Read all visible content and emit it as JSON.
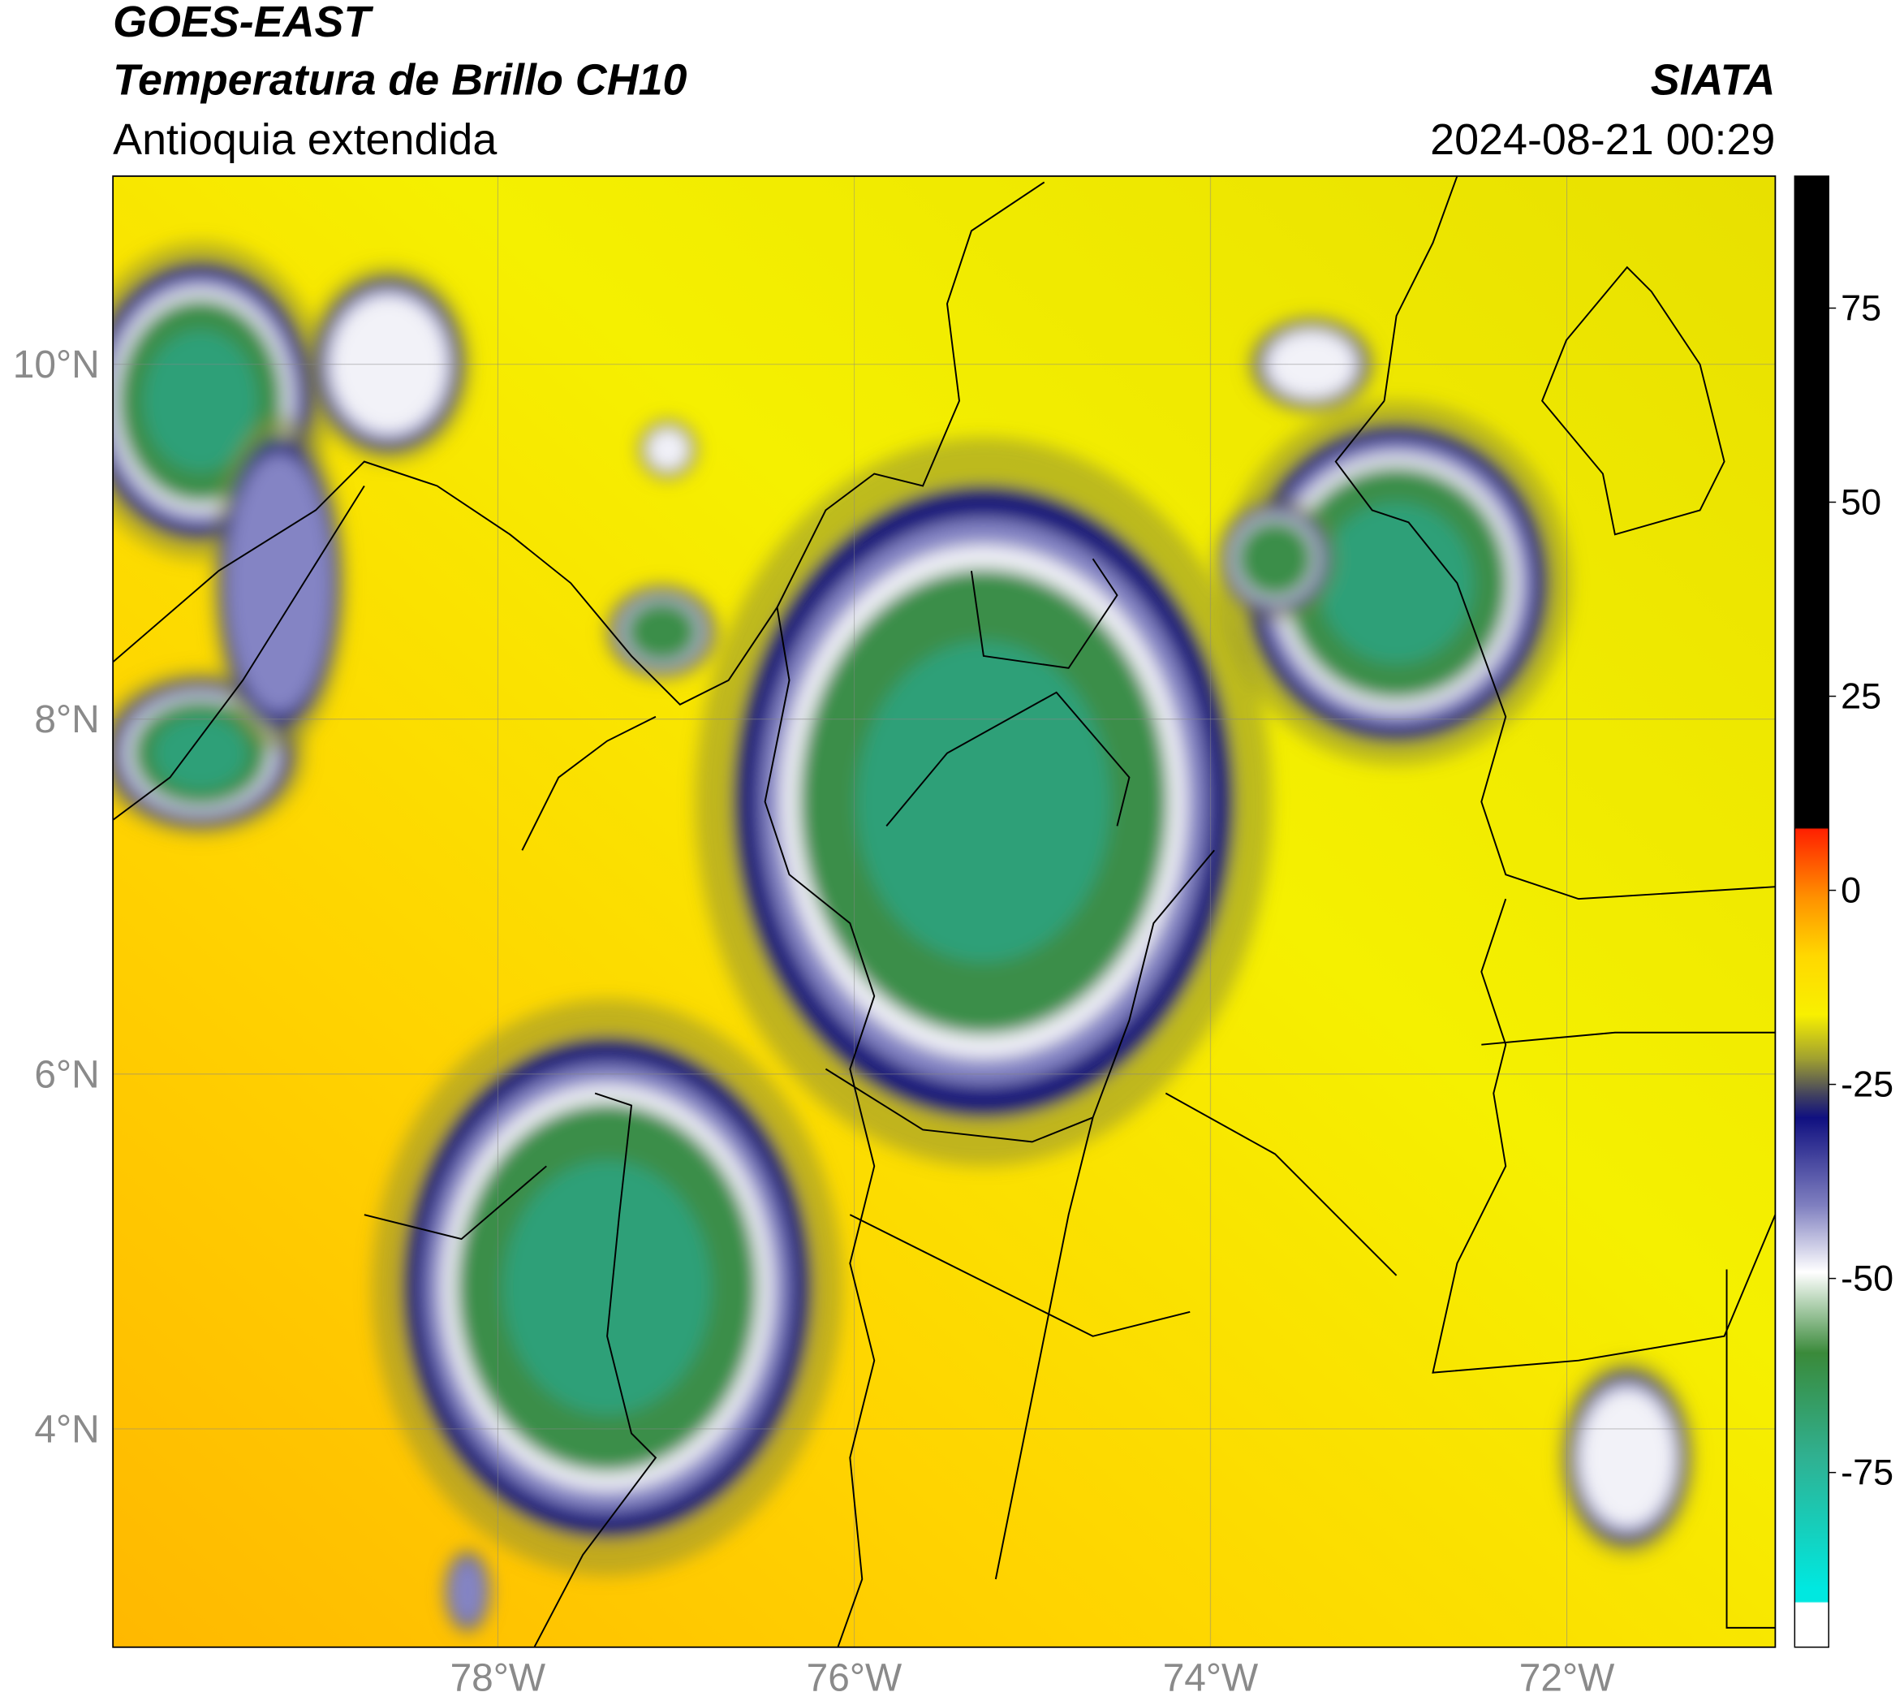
{
  "header": {
    "title": "GOES-EAST",
    "subtitle": "Temperatura de Brillo CH10",
    "region": "Antioquia extendida",
    "source": "SIATA",
    "datetime": "2024-08-21 00:29"
  },
  "map": {
    "xlim": [
      -80.16,
      -70.83
    ],
    "ylim": [
      2.77,
      11.06
    ],
    "xticks": [
      {
        "value": -78,
        "label": "78°W"
      },
      {
        "value": -76,
        "label": "76°W"
      },
      {
        "value": -74,
        "label": "74°W"
      },
      {
        "value": -72,
        "label": "72°W"
      }
    ],
    "yticks": [
      {
        "value": 10,
        "label": "10°N"
      },
      {
        "value": 8,
        "label": "8°N"
      },
      {
        "value": 6,
        "label": "6°N"
      },
      {
        "value": 4,
        "label": "4°N"
      }
    ],
    "grid": true
  },
  "colorbar": {
    "lim": [
      -97.5,
      92
    ],
    "ticks": [
      75,
      50,
      25,
      0,
      -25,
      -50,
      -75
    ]
  }
}
